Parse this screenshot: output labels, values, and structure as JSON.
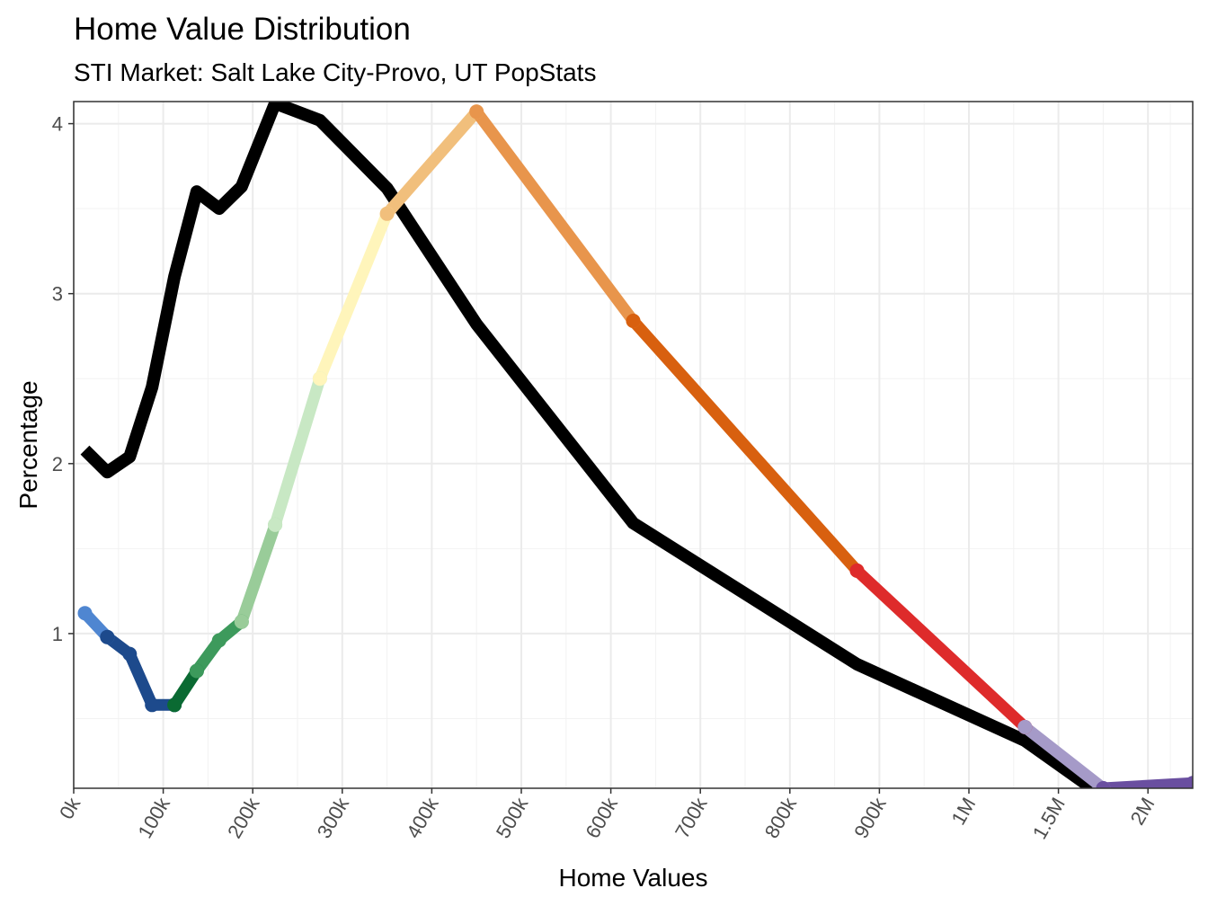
{
  "chart_data": {
    "type": "line",
    "title": "Home Value Distribution",
    "subtitle": "STI Market: Salt Lake City-Provo, UT PopStats",
    "xlabel": "Home Values",
    "ylabel": "Percentage",
    "x_tick_labels": [
      "0k",
      "100k",
      "200k",
      "300k",
      "400k",
      "500k",
      "600k",
      "700k",
      "800k",
      "900k",
      "1M",
      "1.5M",
      "2M"
    ],
    "y_ticks": [
      1,
      2,
      3,
      4
    ],
    "ylim": [
      0.09,
      4.13
    ],
    "grid": true,
    "series": [
      {
        "color": "#000000",
        "points": [
          {
            "x": 0.5,
            "y": 2.08
          },
          {
            "x": 1.5,
            "y": 1.95
          },
          {
            "x": 2.5,
            "y": 2.04
          },
          {
            "x": 3.5,
            "y": 2.45
          },
          {
            "x": 4.5,
            "y": 3.1
          },
          {
            "x": 5.5,
            "y": 3.6
          },
          {
            "x": 6.5,
            "y": 3.5
          },
          {
            "x": 7.5,
            "y": 3.63
          },
          {
            "x": 9,
            "y": 4.12
          },
          {
            "x": 11,
            "y": 4.02
          },
          {
            "x": 14,
            "y": 3.62
          },
          {
            "x": 18,
            "y": 2.82
          },
          {
            "x": 25,
            "y": 1.65
          },
          {
            "x": 35,
            "y": 0.82
          },
          {
            "x": 42.5,
            "y": 0.37
          },
          {
            "x": 45.5,
            "y": 0.09
          }
        ]
      },
      {
        "color": "#4f86d1",
        "points": [
          {
            "x": 0.5,
            "y": 1.12
          },
          {
            "x": 1.5,
            "y": 0.98
          }
        ]
      },
      {
        "color": "#1d4a8c",
        "points": [
          {
            "x": 1.5,
            "y": 0.98
          },
          {
            "x": 2.5,
            "y": 0.88
          },
          {
            "x": 3.5,
            "y": 0.58
          },
          {
            "x": 4.5,
            "y": 0.58
          }
        ]
      },
      {
        "color": "#0a6a32",
        "points": [
          {
            "x": 4.5,
            "y": 0.58
          },
          {
            "x": 5.5,
            "y": 0.78
          }
        ]
      },
      {
        "color": "#3d9a5c",
        "points": [
          {
            "x": 5.5,
            "y": 0.78
          },
          {
            "x": 6.5,
            "y": 0.96
          },
          {
            "x": 7.5,
            "y": 1.07
          }
        ]
      },
      {
        "color": "#99cc99",
        "points": [
          {
            "x": 7.5,
            "y": 1.07
          },
          {
            "x": 9,
            "y": 1.64
          }
        ]
      },
      {
        "color": "#c8e8c4",
        "points": [
          {
            "x": 9,
            "y": 1.64
          },
          {
            "x": 11,
            "y": 2.5
          }
        ]
      },
      {
        "color": "#fff5bb",
        "points": [
          {
            "x": 11,
            "y": 2.5
          },
          {
            "x": 14,
            "y": 3.47
          }
        ]
      },
      {
        "color": "#f1bf7c",
        "points": [
          {
            "x": 14,
            "y": 3.47
          },
          {
            "x": 18,
            "y": 4.07
          }
        ]
      },
      {
        "color": "#e8954c",
        "points": [
          {
            "x": 18,
            "y": 4.07
          },
          {
            "x": 25,
            "y": 2.84
          }
        ]
      },
      {
        "color": "#d8600f",
        "points": [
          {
            "x": 25,
            "y": 2.84
          },
          {
            "x": 35,
            "y": 1.37
          }
        ]
      },
      {
        "color": "#de2b2b",
        "points": [
          {
            "x": 35,
            "y": 1.37
          },
          {
            "x": 42.5,
            "y": 0.45
          }
        ]
      },
      {
        "color": "#a59ac8",
        "points": [
          {
            "x": 42.5,
            "y": 0.45
          },
          {
            "x": 46,
            "y": 0.09
          }
        ]
      },
      {
        "color": "#6a4fa0",
        "points": [
          {
            "x": 46,
            "y": 0.09
          },
          {
            "x": 50,
            "y": 0.12
          }
        ]
      }
    ]
  }
}
